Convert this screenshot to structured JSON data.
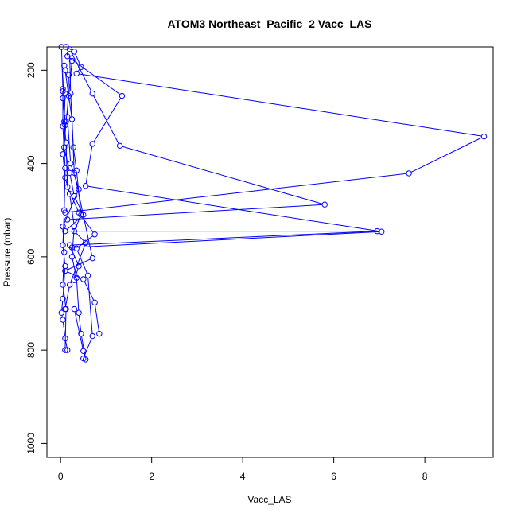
{
  "chart_data": {
    "type": "line",
    "title": "ATOM3 Northeast_Pacific_2 Vacc_LAS",
    "xlabel": "Vacc_LAS",
    "ylabel": "Pressure (mbar)",
    "xlim": [
      -0.3,
      9.5
    ],
    "ylim": [
      1030,
      150
    ],
    "y_inverted": true,
    "x_ticks": [
      0,
      2,
      4,
      6,
      8
    ],
    "y_ticks": [
      200,
      400,
      600,
      800,
      1000
    ],
    "grid": false,
    "legend": "none",
    "color": "#0000ff",
    "marker": "open-circle",
    "series": [
      {
        "values": [
          {
            "x": 0.12,
            "y": 150
          },
          {
            "x": 0.3,
            "y": 160
          },
          {
            "x": 0.45,
            "y": 193
          },
          {
            "x": 0.35,
            "y": 207
          },
          {
            "x": 9.3,
            "y": 342
          },
          {
            "x": 7.65,
            "y": 421
          },
          {
            "x": 0.1,
            "y": 505
          }
        ]
      },
      {
        "values": [
          {
            "x": 0.2,
            "y": 155
          },
          {
            "x": 0.7,
            "y": 250
          },
          {
            "x": 1.3,
            "y": 362
          },
          {
            "x": 5.8,
            "y": 488
          },
          {
            "x": 0.15,
            "y": 520
          }
        ]
      },
      {
        "values": [
          {
            "x": 0.15,
            "y": 170
          },
          {
            "x": 1.35,
            "y": 255
          },
          {
            "x": 0.7,
            "y": 358
          },
          {
            "x": 0.55,
            "y": 448
          },
          {
            "x": 7.05,
            "y": 546
          },
          {
            "x": 0.25,
            "y": 580
          }
        ]
      },
      {
        "values": [
          {
            "x": 0.25,
            "y": 180
          },
          {
            "x": 0.18,
            "y": 255
          },
          {
            "x": 0.12,
            "y": 310
          },
          {
            "x": 0.08,
            "y": 365
          },
          {
            "x": 0.2,
            "y": 420
          },
          {
            "x": 0.3,
            "y": 470
          },
          {
            "x": 0.5,
            "y": 510
          },
          {
            "x": 0.1,
            "y": 545
          },
          {
            "x": 6.95,
            "y": 545
          },
          {
            "x": 0.2,
            "y": 575
          },
          {
            "x": 0.4,
            "y": 620
          },
          {
            "x": 0.3,
            "y": 650
          }
        ]
      },
      {
        "values": [
          {
            "x": 0.1,
            "y": 200
          },
          {
            "x": 0.25,
            "y": 305
          },
          {
            "x": 0.3,
            "y": 420
          },
          {
            "x": 0.7,
            "y": 603
          },
          {
            "x": 0.1,
            "y": 630
          },
          {
            "x": 0.5,
            "y": 648
          },
          {
            "x": 0.75,
            "y": 698
          },
          {
            "x": 0.85,
            "y": 765
          }
        ]
      },
      {
        "values": [
          {
            "x": 0.05,
            "y": 245
          },
          {
            "x": 0.1,
            "y": 250
          },
          {
            "x": 0.08,
            "y": 310
          },
          {
            "x": 0.12,
            "y": 355
          },
          {
            "x": 0.15,
            "y": 450
          },
          {
            "x": 0.4,
            "y": 505
          },
          {
            "x": 0.75,
            "y": 552
          },
          {
            "x": 0.35,
            "y": 582
          },
          {
            "x": 0.6,
            "y": 640
          },
          {
            "x": 0.7,
            "y": 770
          },
          {
            "x": 0.5,
            "y": 818
          }
        ]
      },
      {
        "values": [
          {
            "x": 0.08,
            "y": 190
          },
          {
            "x": 0.05,
            "y": 260
          },
          {
            "x": 0.1,
            "y": 318
          },
          {
            "x": 0.05,
            "y": 380
          },
          {
            "x": 0.1,
            "y": 430
          },
          {
            "x": 0.2,
            "y": 465
          },
          {
            "x": 0.3,
            "y": 535
          },
          {
            "x": 0.25,
            "y": 600
          },
          {
            "x": 0.35,
            "y": 645
          },
          {
            "x": 0.4,
            "y": 720
          },
          {
            "x": 0.45,
            "y": 765
          },
          {
            "x": 0.55,
            "y": 820
          }
        ]
      },
      {
        "values": [
          {
            "x": 0.18,
            "y": 210
          },
          {
            "x": 0.15,
            "y": 300
          },
          {
            "x": 0.22,
            "y": 400
          },
          {
            "x": 0.4,
            "y": 455
          },
          {
            "x": 0.05,
            "y": 535
          },
          {
            "x": 0.08,
            "y": 590
          },
          {
            "x": 0.05,
            "y": 660
          },
          {
            "x": 0.12,
            "y": 712
          },
          {
            "x": 0.1,
            "y": 800
          }
        ]
      },
      {
        "values": [
          {
            "x": 0.02,
            "y": 150
          },
          {
            "x": 0.05,
            "y": 240
          },
          {
            "x": 0.05,
            "y": 320
          },
          {
            "x": 0.1,
            "y": 410
          },
          {
            "x": 0.08,
            "y": 500
          },
          {
            "x": 0.05,
            "y": 575
          },
          {
            "x": 0.1,
            "y": 620
          },
          {
            "x": 0.05,
            "y": 690
          },
          {
            "x": 0.02,
            "y": 720
          },
          {
            "x": 0.05,
            "y": 735
          },
          {
            "x": 0.1,
            "y": 775
          },
          {
            "x": 0.15,
            "y": 800
          }
        ]
      },
      {
        "values": [
          {
            "x": 0.2,
            "y": 165
          },
          {
            "x": 0.22,
            "y": 250
          },
          {
            "x": 0.28,
            "y": 365
          },
          {
            "x": 0.35,
            "y": 415
          },
          {
            "x": 0.45,
            "y": 510
          },
          {
            "x": 0.3,
            "y": 545
          },
          {
            "x": 0.55,
            "y": 570
          },
          {
            "x": 0.2,
            "y": 660
          },
          {
            "x": 0.1,
            "y": 712
          },
          {
            "x": 0.3,
            "y": 712
          },
          {
            "x": 0.5,
            "y": 802
          }
        ]
      }
    ]
  }
}
